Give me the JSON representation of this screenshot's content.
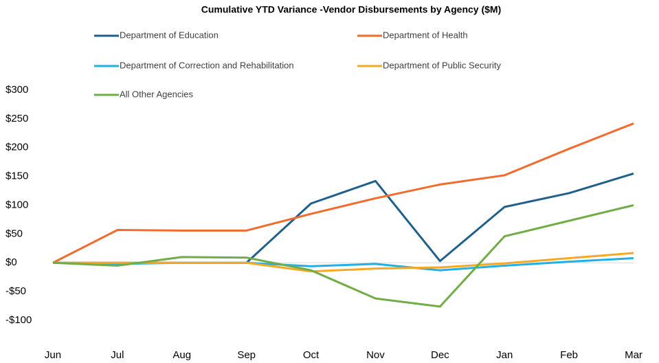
{
  "chart_data": {
    "type": "line",
    "title": "Cumulative YTD Variance -Vendor Disbursements by Agency ($M)",
    "categories": [
      "Jun",
      "Jul",
      "Aug",
      "Sep",
      "Oct",
      "Nov",
      "Dec",
      "Jan",
      "Feb",
      "Mar"
    ],
    "series": [
      {
        "name": "Department of Education",
        "color": "#1f5f8b",
        "values": [
          0,
          0,
          0,
          0,
          103,
          142,
          3,
          97,
          121,
          155
        ]
      },
      {
        "name": "Department of Health",
        "color": "#f26b2d",
        "values": [
          0,
          57,
          56,
          56,
          85,
          112,
          136,
          152,
          198,
          242
        ]
      },
      {
        "name": "Department of Correction and Rehabilitation",
        "color": "#1fb0e8",
        "values": [
          0,
          -2,
          0,
          0,
          -6,
          -2,
          -13,
          -5,
          2,
          8
        ]
      },
      {
        "name": "Department of Public Security",
        "color": "#f7a823",
        "values": [
          0,
          0,
          0,
          0,
          -15,
          -10,
          -8,
          -1,
          8,
          17
        ]
      },
      {
        "name": "All Other Agencies",
        "color": "#70ad47",
        "values": [
          0,
          -5,
          10,
          9,
          -13,
          -62,
          -76,
          46,
          73,
          100
        ]
      }
    ],
    "ylim": [
      -100,
      300
    ],
    "yticks": [
      {
        "value": 300,
        "label": "$300"
      },
      {
        "value": 250,
        "label": "$250"
      },
      {
        "value": 200,
        "label": "$200"
      },
      {
        "value": 150,
        "label": "$150"
      },
      {
        "value": 100,
        "label": "$100"
      },
      {
        "value": 50,
        "label": "$50"
      },
      {
        "value": 0,
        "label": "$0"
      },
      {
        "value": -50,
        "label": "-$50"
      },
      {
        "value": -100,
        "label": "-$100"
      }
    ],
    "grid": false
  }
}
